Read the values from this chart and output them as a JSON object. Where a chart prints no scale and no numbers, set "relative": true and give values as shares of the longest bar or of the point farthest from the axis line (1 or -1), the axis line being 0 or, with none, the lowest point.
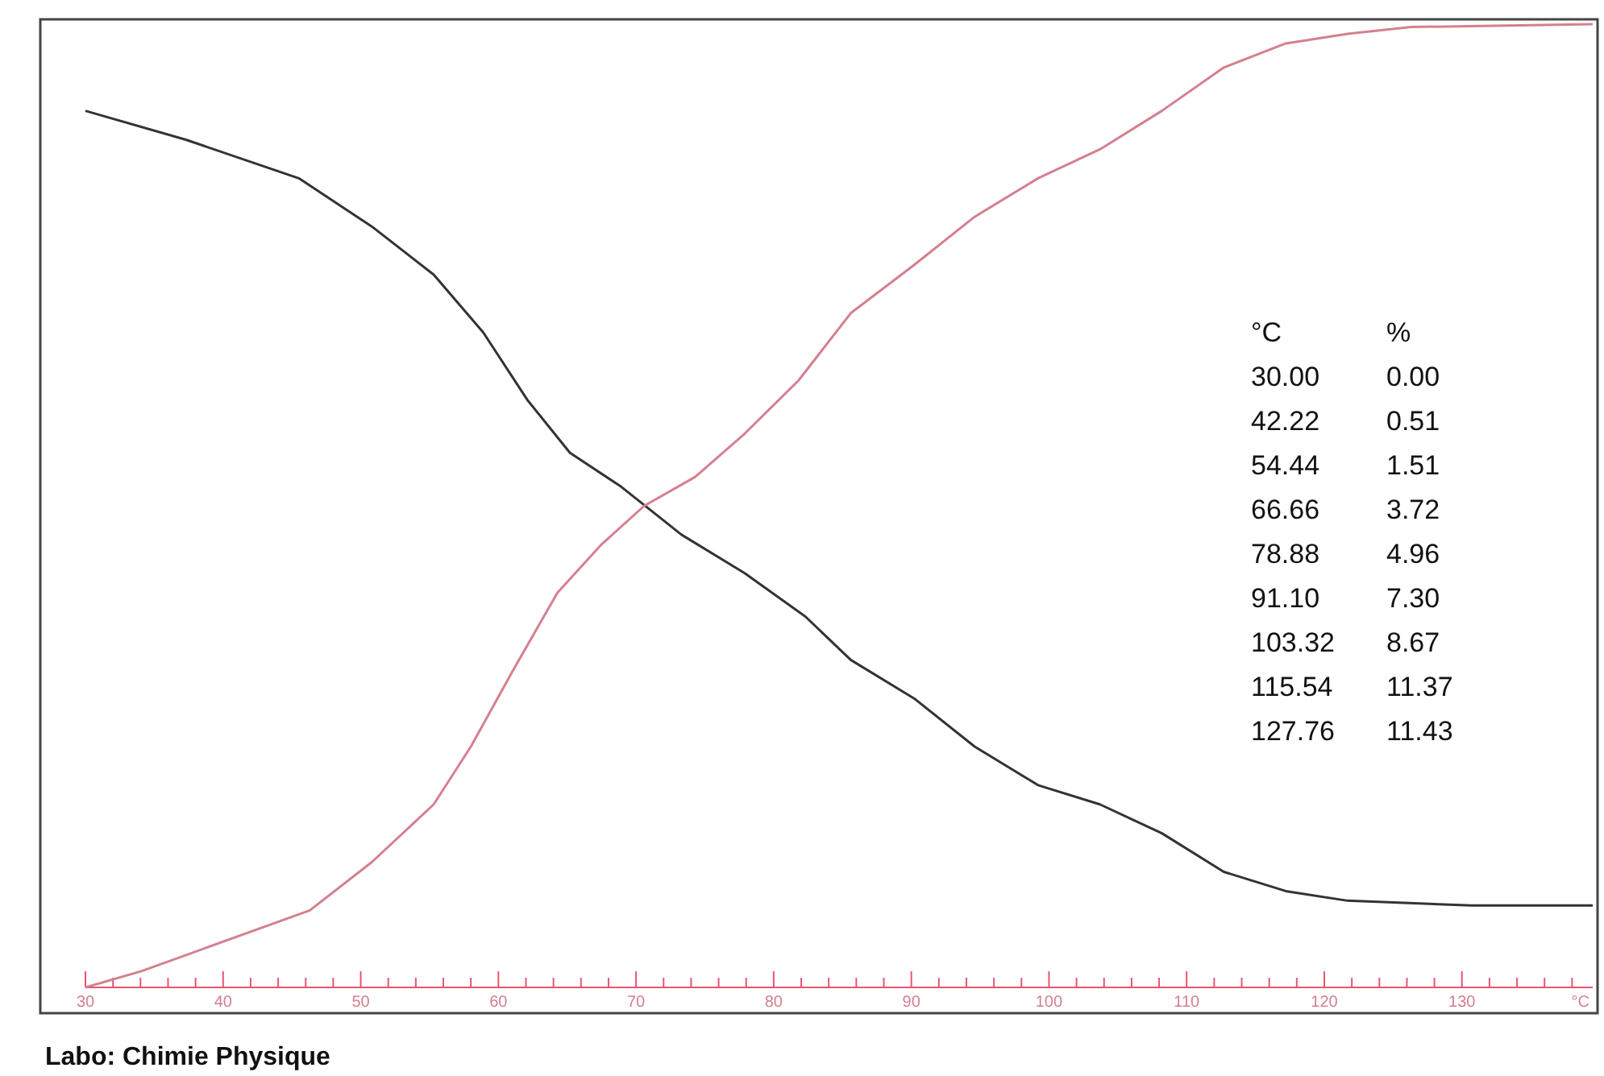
{
  "chart_data": {
    "type": "line",
    "relative": true,
    "xlabel": "°C",
    "xlim": [
      30,
      139.5
    ],
    "xticks": [
      30,
      {
        "value": 32,
        "label": null
      },
      {
        "value": 34,
        "label": null
      },
      {
        "value": 36,
        "label": null
      },
      {
        "value": 38,
        "label": null
      },
      40,
      {
        "value": 42,
        "label": null
      },
      {
        "value": 44,
        "label": null
      },
      {
        "value": 46,
        "label": null
      },
      {
        "value": 48,
        "label": null
      },
      50,
      {
        "value": 52,
        "label": null
      },
      {
        "value": 54,
        "label": null
      },
      {
        "value": 56,
        "label": null
      },
      {
        "value": 58,
        "label": null
      },
      60,
      {
        "value": 62,
        "label": null
      },
      {
        "value": 64,
        "label": null
      },
      {
        "value": 66,
        "label": null
      },
      {
        "value": 68,
        "label": null
      },
      70,
      {
        "value": 72,
        "label": null
      },
      {
        "value": 74,
        "label": null
      },
      {
        "value": 76,
        "label": null
      },
      {
        "value": 78,
        "label": null
      },
      80,
      {
        "value": 82,
        "label": null
      },
      {
        "value": 84,
        "label": null
      },
      {
        "value": 86,
        "label": null
      },
      {
        "value": 88,
        "label": null
      },
      90,
      {
        "value": 92,
        "label": null
      },
      {
        "value": 94,
        "label": null
      },
      {
        "value": 96,
        "label": null
      },
      {
        "value": 98,
        "label": null
      },
      100,
      {
        "value": 102,
        "label": null
      },
      {
        "value": 104,
        "label": null
      },
      {
        "value": 106,
        "label": null
      },
      {
        "value": 108,
        "label": null
      },
      110,
      {
        "value": 112,
        "label": null
      },
      {
        "value": 114,
        "label": null
      },
      {
        "value": 116,
        "label": null
      },
      {
        "value": 118,
        "label": null
      },
      120,
      {
        "value": 122,
        "label": null
      },
      {
        "value": 124,
        "label": null
      },
      {
        "value": 126,
        "label": null
      },
      {
        "value": 128,
        "label": null
      },
      130,
      {
        "value": 132,
        "label": null
      },
      {
        "value": 134,
        "label": null
      },
      {
        "value": 136,
        "label": null
      },
      {
        "value": 138,
        "label": null
      }
    ],
    "grid": false,
    "marker": "none",
    "line_style": "solid",
    "series": [
      {
        "color": "#333333",
        "x": [
          30,
          37.3,
          45.5,
          50.8,
          55.3,
          58.9,
          62.1,
          65.2,
          68.9,
          73.3,
          77.9,
          82.3,
          85.6,
          90.2,
          94.6,
          99.2,
          103.7,
          108.2,
          112.7,
          117.2,
          121.7,
          130.7,
          139.5
        ],
        "values": [
          0.91,
          0.88,
          0.84,
          0.79,
          0.74,
          0.68,
          0.61,
          0.555,
          0.52,
          0.47,
          0.43,
          0.385,
          0.34,
          0.3,
          0.25,
          0.21,
          0.19,
          0.16,
          0.12,
          0.1,
          0.09,
          0.085,
          0.085
        ]
      },
      {
        "color": "#d4808f",
        "x": [
          30,
          34.1,
          46.3,
          50.8,
          55.3,
          58,
          61.1,
          64.3,
          67.5,
          70.6,
          74.3,
          77.9,
          81.8,
          85.6,
          90.2,
          94.6,
          99.2,
          103.7,
          108.2,
          112.7,
          117.2,
          121.7,
          126.3,
          139.5
        ],
        "values": [
          0,
          0.017,
          0.08,
          0.13,
          0.19,
          0.25,
          0.33,
          0.41,
          0.46,
          0.5,
          0.53,
          0.575,
          0.63,
          0.7,
          0.75,
          0.8,
          0.84,
          0.87,
          0.91,
          0.955,
          0.98,
          0.99,
          0.997,
          1
        ]
      }
    ],
    "annotations": [
      "°C",
      "%",
      "30.00",
      "0.00",
      "42.22",
      "0.51",
      "54.44",
      "1.51",
      "66.66",
      "3.72",
      "78.88",
      "4.96",
      "91.10",
      "7.30",
      "103.32",
      "8.67",
      "115.54",
      "11.37",
      "127.76",
      "11.43",
      "Labo: Chimie Physique"
    ]
  }
}
